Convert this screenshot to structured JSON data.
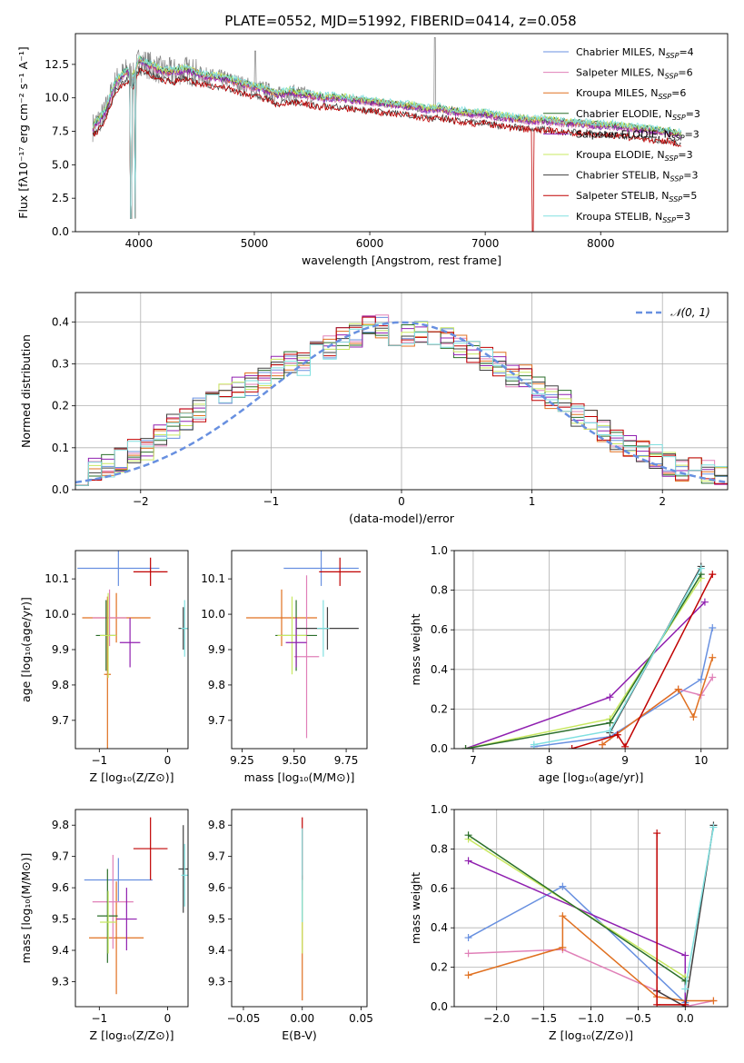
{
  "title": "PLATE=0552, MJD=51992, FIBERID=0414, z=0.058",
  "colors": {
    "chabrier_miles": "#6890e0",
    "salpeter_miles": "#e080b8",
    "kroupa_miles": "#e07020",
    "chabrier_elodie": "#2a6e2a",
    "salpeter_elodie": "#9020b0",
    "kroupa_elodie": "#c8e860",
    "chabrier_stelib": "#404040",
    "salpeter_stelib": "#c00000",
    "kroupa_stelib": "#80e0e0",
    "data": "#808080",
    "grid": "#b0b0b0"
  },
  "chart_data": [
    {
      "id": "spectrum",
      "type": "line",
      "xlabel": "wavelength [Angstrom, rest frame]",
      "ylabel": "Flux [fλ10⁻¹⁷ erg cm⁻² s⁻¹ A⁻¹]",
      "xlim": [
        3450,
        9100
      ],
      "ylim": [
        0,
        14.8
      ],
      "xticks": [
        4000,
        5000,
        6000,
        7000,
        8000
      ],
      "yticks": [
        0.0,
        2.5,
        5.0,
        7.5,
        10.0,
        12.5
      ],
      "grid": false,
      "legend": "top-right",
      "data_series": {
        "name": "",
        "x": [
          3600,
          3700,
          3800,
          3900,
          3950,
          4000,
          4100,
          4200,
          4300,
          4400,
          4500,
          4600,
          4700,
          4800,
          4900,
          5000,
          5100,
          5200,
          5300,
          5400,
          5500,
          5600,
          5700,
          5800,
          5900,
          6000,
          6100,
          6200,
          6300,
          6400,
          6500,
          6600,
          6700,
          6800,
          6900,
          7000,
          7100,
          7200,
          7300,
          7400,
          7500,
          7600,
          7700,
          7800,
          7900,
          8000,
          8100,
          8200,
          8300,
          8400,
          8500,
          8600,
          8700
        ],
        "y": [
          7.8,
          8.8,
          11.2,
          12.0,
          11.5,
          12.8,
          12.4,
          12.0,
          11.9,
          12.1,
          11.8,
          11.6,
          11.5,
          11.3,
          11.0,
          10.8,
          10.6,
          10.2,
          10.4,
          10.3,
          10.1,
          10.0,
          10.0,
          9.9,
          9.8,
          9.7,
          9.6,
          9.5,
          9.4,
          9.3,
          9.1,
          9.2,
          9.0,
          8.9,
          8.8,
          8.8,
          8.6,
          8.5,
          8.4,
          8.3,
          8.3,
          8.2,
          8.1,
          8.1,
          8.0,
          7.9,
          7.9,
          7.8,
          7.7,
          7.6,
          7.5,
          7.4,
          7.2
        ]
      },
      "series": [
        {
          "key": "chabrier_miles",
          "name": "Chabrier MILES, N",
          "n": "4",
          "offset": 0.0
        },
        {
          "key": "salpeter_miles",
          "name": "Salpeter MILES, N",
          "n": "6",
          "offset": -0.1
        },
        {
          "key": "kroupa_miles",
          "name": "Kroupa MILES, N",
          "n": "6",
          "offset": 0.05
        },
        {
          "key": "chabrier_elodie",
          "name": "Chabrier ELODIE, N",
          "n": "3",
          "offset": 0.1
        },
        {
          "key": "salpeter_elodie",
          "name": "Salpeter ELODIE, N",
          "n": "3",
          "offset": -0.05
        },
        {
          "key": "kroupa_elodie",
          "name": "Kroupa ELODIE, N",
          "n": "3",
          "offset": 0.15
        },
        {
          "key": "chabrier_stelib",
          "name": "Chabrier STELIB, N",
          "n": "3",
          "offset": -0.15
        },
        {
          "key": "salpeter_stelib",
          "name": "Salpeter STELIB, N",
          "n": "5",
          "offset": -0.2
        },
        {
          "key": "kroupa_stelib",
          "name": "Kroupa STELIB, N",
          "n": "3",
          "offset": 0.2
        }
      ],
      "legend_subscript": "SSP"
    },
    {
      "id": "residuals",
      "type": "line",
      "xlabel": "(data-model)/error",
      "ylabel": "Normed distribution",
      "xlim": [
        -2.5,
        2.5
      ],
      "ylim": [
        0,
        0.47
      ],
      "xticks": [
        -2,
        -1,
        0,
        1,
        2
      ],
      "yticks": [
        0.0,
        0.1,
        0.2,
        0.3,
        0.4
      ],
      "grid": true,
      "legend": "top-right",
      "gaussian_label": "𝒩(0, 1)",
      "hist_x": [
        -2.5,
        -2.4,
        -2.3,
        -2.2,
        -2.1,
        -2.0,
        -1.9,
        -1.8,
        -1.7,
        -1.6,
        -1.5,
        -1.4,
        -1.3,
        -1.2,
        -1.1,
        -1.0,
        -0.9,
        -0.8,
        -0.7,
        -0.6,
        -0.5,
        -0.4,
        -0.3,
        -0.2,
        -0.1,
        0.0,
        0.1,
        0.2,
        0.3,
        0.4,
        0.5,
        0.6,
        0.7,
        0.8,
        0.9,
        1.0,
        1.1,
        1.2,
        1.3,
        1.4,
        1.5,
        1.6,
        1.7,
        1.8,
        1.9,
        2.0,
        2.1,
        2.2,
        2.3,
        2.4,
        2.5
      ],
      "hist_base": [
        0.04,
        0.05,
        0.06,
        0.07,
        0.09,
        0.1,
        0.13,
        0.15,
        0.17,
        0.19,
        0.21,
        0.23,
        0.24,
        0.25,
        0.27,
        0.29,
        0.3,
        0.3,
        0.33,
        0.34,
        0.36,
        0.37,
        0.39,
        0.39,
        0.36,
        0.37,
        0.38,
        0.36,
        0.36,
        0.34,
        0.33,
        0.31,
        0.3,
        0.27,
        0.27,
        0.24,
        0.22,
        0.21,
        0.18,
        0.17,
        0.14,
        0.12,
        0.1,
        0.09,
        0.08,
        0.06,
        0.05,
        0.05,
        0.04,
        0.03
      ]
    },
    {
      "id": "age_Z",
      "type": "scatter",
      "xlabel": "Z [log₁₀(Z/Z⊙)]",
      "ylabel": "age  [log₁₀(age/yr)]",
      "xlim": [
        -1.35,
        0.3
      ],
      "ylim": [
        9.62,
        10.18
      ],
      "xticks": [
        -1,
        0
      ],
      "yticks": [
        9.7,
        9.8,
        9.9,
        10.0,
        10.1
      ],
      "grid": false,
      "points": [
        {
          "key": "chabrier_miles",
          "x": -0.72,
          "xe": 0.6,
          "y": 10.13,
          "ye": 0.05
        },
        {
          "key": "kroupa_miles",
          "x": -0.75,
          "xe": 0.5,
          "y": 9.99,
          "ye": 0.07
        },
        {
          "key": "salpeter_miles",
          "x": -0.85,
          "xe": 0.25,
          "y": 9.99,
          "ye": 0.08
        },
        {
          "key": "kroupa_miles",
          "x": -0.88,
          "xe": 0.05,
          "y": 9.83,
          "ye": 0.22
        },
        {
          "key": "chabrier_elodie",
          "x": -0.9,
          "xe": 0.15,
          "y": 9.94,
          "ye": 0.1
        },
        {
          "key": "kroupa_elodie",
          "x": -0.87,
          "xe": 0.12,
          "y": 9.94,
          "ye": 0.12
        },
        {
          "key": "salpeter_elodie",
          "x": -0.55,
          "xe": 0.15,
          "y": 9.92,
          "ye": 0.07
        },
        {
          "key": "salpeter_stelib",
          "x": -0.25,
          "xe": 0.25,
          "y": 10.12,
          "ye": 0.04
        },
        {
          "key": "chabrier_stelib",
          "x": 0.23,
          "xe": 0.07,
          "y": 9.96,
          "ye": 0.06
        },
        {
          "key": "kroupa_stelib",
          "x": 0.25,
          "xe": 0.05,
          "y": 9.96,
          "ye": 0.08
        }
      ]
    },
    {
      "id": "age_mass",
      "type": "scatter",
      "xlabel": "mass [log₁₀(M/M⊙)]",
      "ylabel": "",
      "xlim": [
        9.2,
        9.85
      ],
      "ylim": [
        9.62,
        10.18
      ],
      "xticks": [
        9.25,
        9.5,
        9.75
      ],
      "yticks": [
        9.7,
        9.8,
        9.9,
        10.0,
        10.1
      ],
      "grid": false,
      "points": [
        {
          "key": "chabrier_miles",
          "x": 9.63,
          "xe": 0.18,
          "y": 10.13,
          "ye": 0.05
        },
        {
          "key": "kroupa_miles",
          "x": 9.44,
          "xe": 0.17,
          "y": 9.99,
          "ye": 0.08
        },
        {
          "key": "salpeter_miles",
          "x": 9.56,
          "xe": 0.06,
          "y": 9.88,
          "ye": 0.23
        },
        {
          "key": "chabrier_elodie",
          "x": 9.51,
          "xe": 0.1,
          "y": 9.94,
          "ye": 0.1
        },
        {
          "key": "kroupa_elodie",
          "x": 9.49,
          "xe": 0.07,
          "y": 9.94,
          "ye": 0.11
        },
        {
          "key": "salpeter_elodie",
          "x": 9.51,
          "xe": 0.05,
          "y": 9.92,
          "ye": 0.07
        },
        {
          "key": "salpeter_stelib",
          "x": 9.72,
          "xe": 0.1,
          "y": 10.12,
          "ye": 0.04
        },
        {
          "key": "chabrier_stelib",
          "x": 9.66,
          "xe": 0.15,
          "y": 9.96,
          "ye": 0.06
        },
        {
          "key": "kroupa_stelib",
          "x": 9.64,
          "xe": 0.03,
          "y": 9.96,
          "ye": 0.08
        }
      ]
    },
    {
      "id": "weight_age",
      "type": "line",
      "xlabel": "age  [log₁₀(age/yr)]",
      "ylabel": "mass weight",
      "xlim": [
        6.75,
        10.35
      ],
      "ylim": [
        0,
        1.0
      ],
      "xticks": [
        7,
        8,
        9,
        10
      ],
      "yticks": [
        0.0,
        0.2,
        0.4,
        0.6,
        0.8,
        1.0
      ],
      "grid": true,
      "lines": [
        {
          "key": "chabrier_miles",
          "x": [
            7.8,
            8.8,
            10.0,
            10.15
          ],
          "y": [
            0.01,
            0.06,
            0.35,
            0.61
          ]
        },
        {
          "key": "salpeter_miles",
          "x": [
            8.7,
            9.7,
            10.0,
            10.15
          ],
          "y": [
            0.02,
            0.3,
            0.27,
            0.36
          ]
        },
        {
          "key": "kroupa_miles",
          "x": [
            8.7,
            9.7,
            9.9,
            10.15
          ],
          "y": [
            0.02,
            0.3,
            0.16,
            0.46
          ]
        },
        {
          "key": "salpeter_elodie",
          "x": [
            6.9,
            8.8,
            10.05
          ],
          "y": [
            0.0,
            0.26,
            0.74
          ]
        },
        {
          "key": "kroupa_elodie",
          "x": [
            6.9,
            8.8,
            10.0
          ],
          "y": [
            0.0,
            0.15,
            0.86
          ]
        },
        {
          "key": "chabrier_elodie",
          "x": [
            6.9,
            8.8,
            10.0
          ],
          "y": [
            0.0,
            0.13,
            0.88
          ]
        },
        {
          "key": "chabrier_stelib",
          "x": [
            8.8,
            10.0
          ],
          "y": [
            0.08,
            0.92
          ]
        },
        {
          "key": "kroupa_stelib",
          "x": [
            7.8,
            8.8,
            10.0
          ],
          "y": [
            0.02,
            0.09,
            0.91
          ]
        },
        {
          "key": "salpeter_stelib",
          "x": [
            8.3,
            8.9,
            9.0,
            10.15
          ],
          "y": [
            0.0,
            0.07,
            0.01,
            0.88
          ]
        }
      ]
    },
    {
      "id": "mass_Z",
      "type": "scatter",
      "xlabel": "Z [log₁₀(Z/Z⊙)]",
      "ylabel": "mass [log₁₀(M/M⊙)]",
      "xlim": [
        -1.35,
        0.3
      ],
      "ylim": [
        9.22,
        9.85
      ],
      "xticks": [
        -1,
        0
      ],
      "yticks": [
        9.3,
        9.4,
        9.5,
        9.6,
        9.7,
        9.8
      ],
      "grid": false,
      "points": [
        {
          "key": "chabrier_miles",
          "x": -0.72,
          "xe": 0.5,
          "y": 9.625,
          "ye": 0.07
        },
        {
          "key": "kroupa_miles",
          "x": -0.75,
          "xe": 0.4,
          "y": 9.44,
          "ye": 0.18
        },
        {
          "key": "salpeter_miles",
          "x": -0.8,
          "xe": 0.3,
          "y": 9.555,
          "ye": 0.15
        },
        {
          "key": "chabrier_elodie",
          "x": -0.88,
          "xe": 0.15,
          "y": 9.51,
          "ye": 0.15
        },
        {
          "key": "kroupa_elodie",
          "x": -0.87,
          "xe": 0.12,
          "y": 9.49,
          "ye": 0.1
        },
        {
          "key": "salpeter_elodie",
          "x": -0.6,
          "xe": 0.15,
          "y": 9.5,
          "ye": 0.1
        },
        {
          "key": "salpeter_stelib",
          "x": -0.25,
          "xe": 0.25,
          "y": 9.725,
          "ye": 0.1
        },
        {
          "key": "chabrier_stelib",
          "x": 0.23,
          "xe": 0.07,
          "y": 9.66,
          "ye": 0.14
        },
        {
          "key": "kroupa_stelib",
          "x": 0.25,
          "xe": 0.05,
          "y": 9.64,
          "ye": 0.1
        }
      ]
    },
    {
      "id": "mass_ebv",
      "type": "scatter",
      "xlabel": "E(B-V)",
      "ylabel": "",
      "xlim": [
        -0.06,
        0.055
      ],
      "ylim": [
        9.22,
        9.85
      ],
      "xticks": [
        -0.05,
        0.0,
        0.05
      ],
      "yticks": [
        9.3,
        9.4,
        9.5,
        9.6,
        9.7,
        9.8
      ],
      "grid": false,
      "points": [
        {
          "key": "kroupa_miles",
          "x": 0.0,
          "xe": 0.0,
          "y": 9.44,
          "ye": 0.2
        },
        {
          "key": "kroupa_elodie",
          "x": 0.0,
          "xe": 0.0,
          "y": 9.49,
          "ye": 0.1
        },
        {
          "key": "salpeter_stelib",
          "x": 0.0,
          "xe": 0.0,
          "y": 9.725,
          "ye": 0.1
        },
        {
          "key": "kroupa_stelib",
          "x": 0.0,
          "xe": 0.0,
          "y": 9.64,
          "ye": 0.15
        }
      ]
    },
    {
      "id": "weight_Z",
      "type": "line",
      "xlabel": "Z [log₁₀(Z/Z⊙)]",
      "ylabel": "mass weight",
      "xlim": [
        -2.45,
        0.45
      ],
      "ylim": [
        0,
        1.0
      ],
      "xticks": [
        -2.0,
        -1.5,
        -1.0,
        -0.5,
        0.0
      ],
      "yticks": [
        0.0,
        0.2,
        0.4,
        0.6,
        0.8,
        1.0
      ],
      "grid": true,
      "lines": [
        {
          "key": "chabrier_miles",
          "x": [
            -2.3,
            -1.3,
            0.0
          ],
          "y": [
            0.35,
            0.61,
            0.02
          ]
        },
        {
          "key": "salpeter_miles",
          "x": [
            -2.3,
            -1.3,
            -0.3,
            0.0,
            0.3
          ],
          "y": [
            0.27,
            0.29,
            0.08,
            0.0,
            0.03
          ]
        },
        {
          "key": "kroupa_miles",
          "x": [
            -2.3,
            -1.3,
            -1.3,
            -0.3,
            0.0,
            0.3
          ],
          "y": [
            0.16,
            0.3,
            0.46,
            0.05,
            0.03,
            0.03
          ]
        },
        {
          "key": "salpeter_elodie",
          "x": [
            -2.3,
            0.0,
            0.0
          ],
          "y": [
            0.74,
            0.26,
            0.0
          ]
        },
        {
          "key": "kroupa_elodie",
          "x": [
            -2.3,
            0.0
          ],
          "y": [
            0.85,
            0.15
          ]
        },
        {
          "key": "chabrier_elodie",
          "x": [
            -2.3,
            0.0
          ],
          "y": [
            0.87,
            0.13
          ]
        },
        {
          "key": "chabrier_stelib",
          "x": [
            -0.3,
            0.0,
            0.3
          ],
          "y": [
            0.08,
            0.0,
            0.92
          ]
        },
        {
          "key": "kroupa_stelib",
          "x": [
            0.0,
            0.3
          ],
          "y": [
            0.09,
            0.91
          ]
        },
        {
          "key": "salpeter_stelib",
          "x": [
            -0.3,
            -0.3,
            0.0
          ],
          "y": [
            0.88,
            0.01,
            0.01
          ]
        }
      ]
    }
  ]
}
